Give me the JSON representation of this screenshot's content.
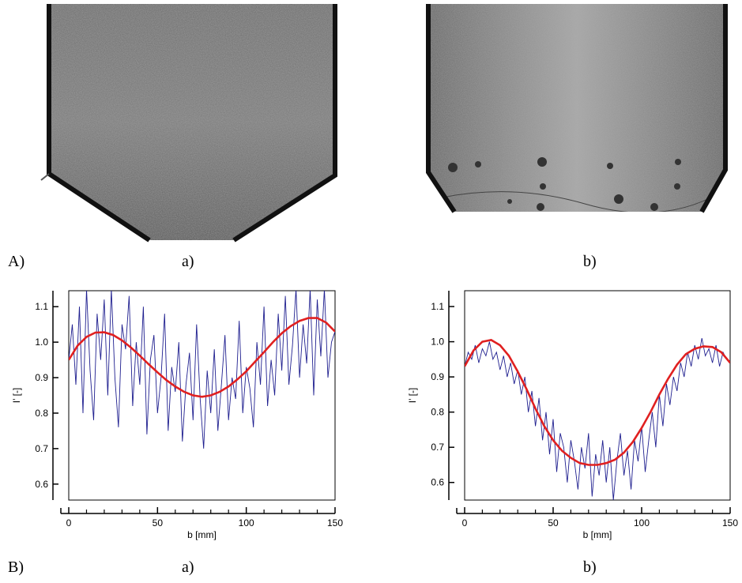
{
  "panel_labels": [
    "A)",
    "a)",
    "b)",
    "B)",
    "a)",
    "b)"
  ],
  "chart_data": [
    {
      "type": "line",
      "xlabel": "b [mm]",
      "ylabel": "I’ [-]",
      "xlim": [
        0,
        150
      ],
      "xticks": [
        0,
        50,
        100,
        150
      ],
      "xminorticks": [
        10,
        20,
        30,
        40,
        60,
        70,
        80,
        90,
        110,
        120,
        130,
        140
      ],
      "ylim": [
        0.555,
        1.145
      ],
      "yticks": [
        0.6,
        0.7,
        0.8,
        0.9,
        {
          "value": 1,
          "label": "1.0"
        },
        1.1
      ],
      "series": [
        {
          "color": "#1f1f8f",
          "x": [
            0,
            2,
            4,
            6,
            8,
            10,
            12,
            14,
            16,
            18,
            20,
            22,
            24,
            26,
            28,
            30,
            32,
            34,
            36,
            38,
            40,
            42,
            44,
            46,
            48,
            50,
            52,
            54,
            56,
            58,
            60,
            62,
            64,
            66,
            68,
            70,
            72,
            74,
            76,
            78,
            80,
            82,
            84,
            86,
            88,
            90,
            92,
            94,
            96,
            98,
            100,
            102,
            104,
            106,
            108,
            110,
            112,
            114,
            116,
            118,
            120,
            122,
            124,
            126,
            128,
            130,
            132,
            134,
            136,
            138,
            140,
            142,
            144,
            146,
            148,
            150
          ],
          "values": [
            0.95,
            1.05,
            0.88,
            1.1,
            0.8,
            1.15,
            0.92,
            0.78,
            1.08,
            0.95,
            1.12,
            0.85,
            1.15,
            0.9,
            0.76,
            1.05,
            0.98,
            1.13,
            0.82,
            1.0,
            0.88,
            1.1,
            0.74,
            0.95,
            1.02,
            0.8,
            0.9,
            1.08,
            0.75,
            0.93,
            0.86,
            1.0,
            0.72,
            0.88,
            0.97,
            0.78,
            1.05,
            0.84,
            0.7,
            0.92,
            0.8,
            0.98,
            0.75,
            0.88,
            1.02,
            0.78,
            0.9,
            0.84,
            1.06,
            0.8,
            0.93,
            0.87,
            0.76,
            1.0,
            0.88,
            1.1,
            0.82,
            0.95,
            0.85,
            1.08,
            0.92,
            1.13,
            0.88,
            0.99,
            1.15,
            0.9,
            1.05,
            0.94,
            1.15,
            0.85,
            1.12,
            0.96,
            1.15,
            0.9,
            1.0,
            1.03
          ]
        },
        {
          "color": "#e02020",
          "x": [
            0,
            5,
            10,
            15,
            20,
            25,
            30,
            35,
            40,
            45,
            50,
            55,
            60,
            65,
            70,
            75,
            80,
            85,
            90,
            95,
            100,
            105,
            110,
            115,
            120,
            125,
            130,
            135,
            140,
            145,
            150
          ],
          "values": [
            0.95,
            0.99,
            1.015,
            1.027,
            1.028,
            1.02,
            1.005,
            0.985,
            0.962,
            0.938,
            0.915,
            0.893,
            0.875,
            0.86,
            0.85,
            0.846,
            0.85,
            0.86,
            0.875,
            0.895,
            0.918,
            0.945,
            0.972,
            1.0,
            1.025,
            1.045,
            1.06,
            1.068,
            1.068,
            1.055,
            1.03
          ]
        }
      ]
    },
    {
      "type": "line",
      "xlabel": "b [mm]",
      "ylabel": "I’ [-]",
      "xlim": [
        0,
        150
      ],
      "xticks": [
        0,
        50,
        100,
        150
      ],
      "xminorticks": [
        10,
        20,
        30,
        40,
        60,
        70,
        80,
        90,
        110,
        120,
        130,
        140
      ],
      "ylim": [
        0.55,
        1.145
      ],
      "yticks": [
        0.6,
        0.7,
        0.8,
        0.9,
        {
          "value": 1,
          "label": "1.0"
        },
        1.1
      ],
      "series": [
        {
          "color": "#1f1f8f",
          "x": [
            0,
            2,
            4,
            6,
            8,
            10,
            12,
            14,
            16,
            18,
            20,
            22,
            24,
            26,
            28,
            30,
            32,
            34,
            36,
            38,
            40,
            42,
            44,
            46,
            48,
            50,
            52,
            54,
            56,
            58,
            60,
            62,
            64,
            66,
            68,
            70,
            72,
            74,
            76,
            78,
            80,
            82,
            84,
            86,
            88,
            90,
            92,
            94,
            96,
            98,
            100,
            102,
            104,
            106,
            108,
            110,
            112,
            114,
            116,
            118,
            120,
            122,
            124,
            126,
            128,
            130,
            132,
            134,
            136,
            138,
            140,
            142,
            144,
            146,
            148,
            150
          ],
          "values": [
            0.93,
            0.97,
            0.95,
            0.99,
            0.94,
            0.98,
            0.96,
            1.0,
            0.95,
            0.97,
            0.92,
            0.96,
            0.9,
            0.94,
            0.88,
            0.92,
            0.85,
            0.9,
            0.8,
            0.86,
            0.76,
            0.84,
            0.72,
            0.8,
            0.68,
            0.78,
            0.63,
            0.74,
            0.7,
            0.6,
            0.72,
            0.66,
            0.58,
            0.7,
            0.64,
            0.74,
            0.56,
            0.68,
            0.62,
            0.72,
            0.6,
            0.7,
            0.55,
            0.66,
            0.74,
            0.62,
            0.69,
            0.58,
            0.72,
            0.66,
            0.76,
            0.63,
            0.72,
            0.8,
            0.7,
            0.85,
            0.76,
            0.88,
            0.82,
            0.9,
            0.86,
            0.94,
            0.9,
            0.97,
            0.93,
            0.99,
            0.95,
            1.01,
            0.96,
            0.98,
            0.94,
            0.99,
            0.93,
            0.97,
            0.95,
            0.94
          ]
        },
        {
          "color": "#e02020",
          "x": [
            0,
            5,
            10,
            15,
            20,
            25,
            30,
            35,
            40,
            45,
            50,
            55,
            60,
            65,
            70,
            75,
            80,
            85,
            90,
            95,
            100,
            105,
            110,
            115,
            120,
            125,
            130,
            135,
            140,
            145,
            150
          ],
          "values": [
            0.93,
            0.975,
            1.0,
            1.005,
            0.99,
            0.96,
            0.915,
            0.865,
            0.81,
            0.76,
            0.72,
            0.69,
            0.67,
            0.655,
            0.65,
            0.65,
            0.655,
            0.665,
            0.685,
            0.715,
            0.755,
            0.8,
            0.85,
            0.895,
            0.935,
            0.965,
            0.98,
            0.987,
            0.985,
            0.97,
            0.94
          ]
        }
      ]
    }
  ]
}
